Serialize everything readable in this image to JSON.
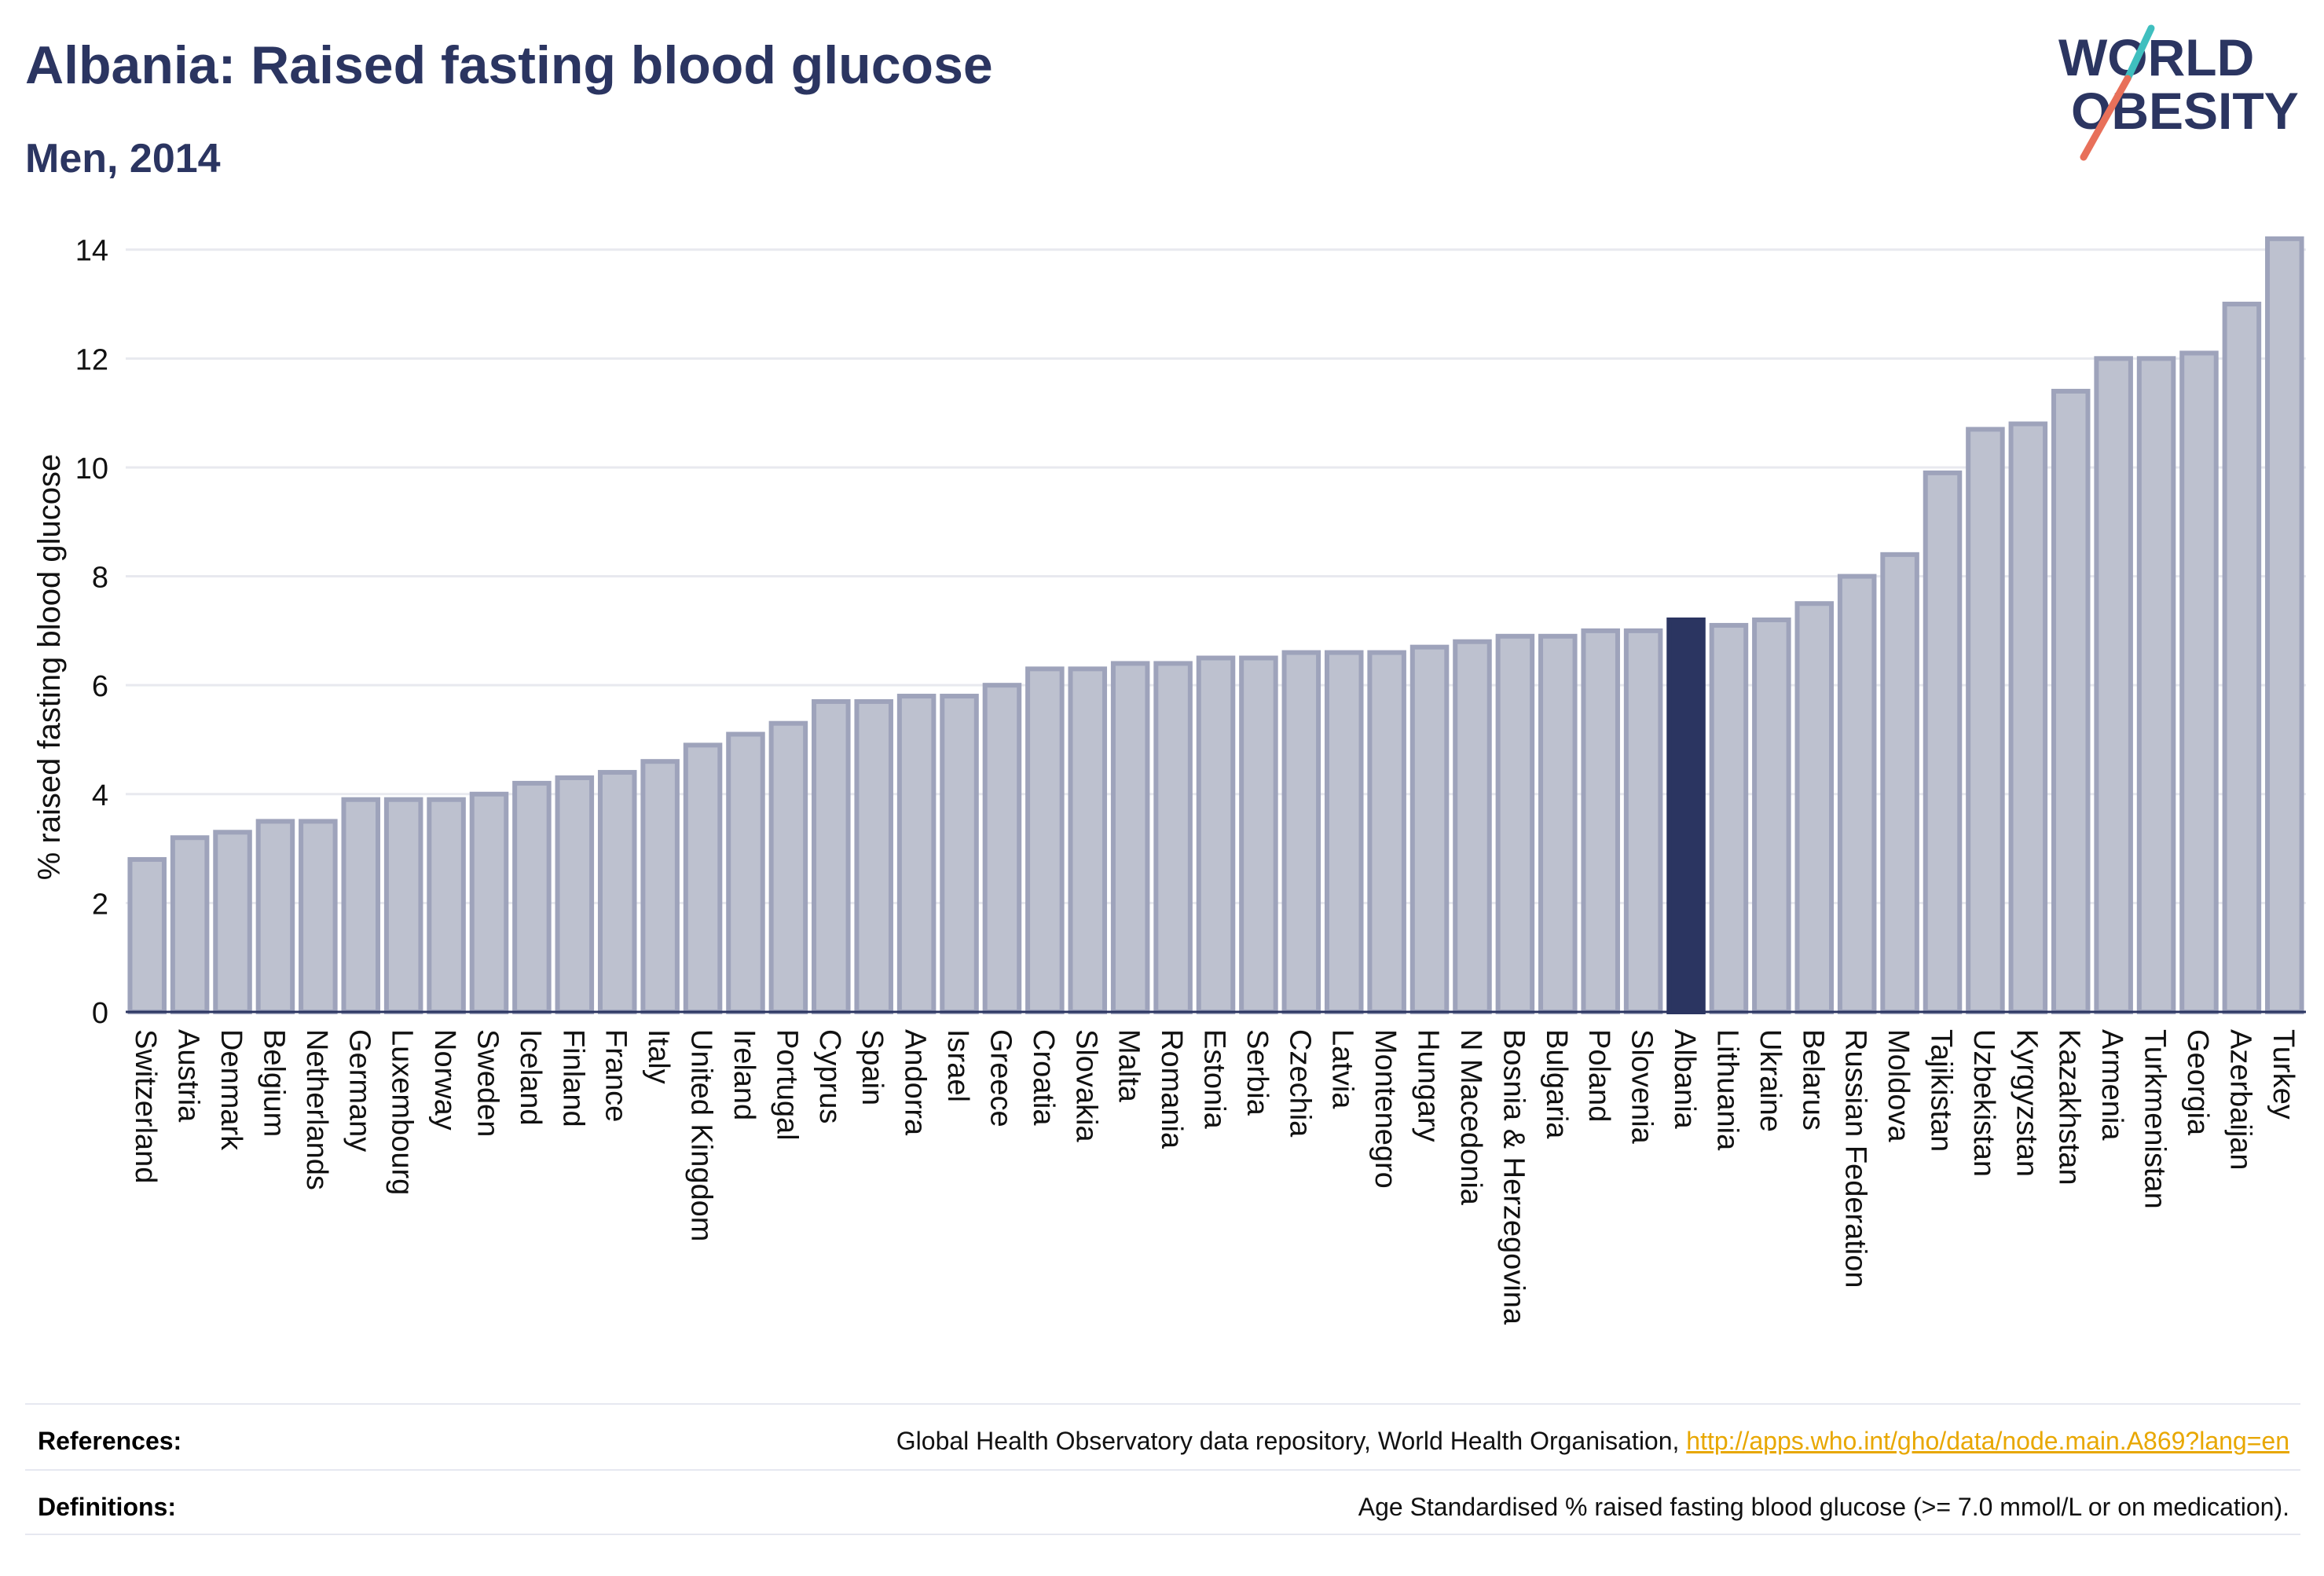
{
  "header": {
    "title": "Albania: Raised fasting blood glucose",
    "subtitle": "Men, 2014"
  },
  "logo": {
    "line1": "WORLD",
    "line2": "OBESITY"
  },
  "colors": {
    "highlight": "#2b3561",
    "bar_fill": "#bdc1cf",
    "bar_stroke": "#9ea3bb",
    "grid": "#e8e9ef",
    "logo_teal": "#3fbfbf",
    "logo_coral": "#e8705a",
    "link": "#e8a700"
  },
  "chart_data": {
    "type": "bar",
    "ylabel": "% raised fasting blood glucose",
    "xlabel": "",
    "ylim": [
      0,
      14.4
    ],
    "yticks": [
      0,
      2,
      4,
      6,
      8,
      10,
      12,
      14
    ],
    "grid": true,
    "highlight": "Albania",
    "categories": [
      "Switzerland",
      "Austria",
      "Denmark",
      "Belgium",
      "Netherlands",
      "Germany",
      "Luxembourg",
      "Norway",
      "Sweden",
      "Iceland",
      "Finland",
      "France",
      "Italy",
      "United Kingdom",
      "Ireland",
      "Portugal",
      "Cyprus",
      "Spain",
      "Andorra",
      "Israel",
      "Greece",
      "Croatia",
      "Slovakia",
      "Malta",
      "Romania",
      "Estonia",
      "Serbia",
      "Czechia",
      "Latvia",
      "Montenegro",
      "Hungary",
      "N Macedonia",
      "Bosnia & Herzegovina",
      "Bulgaria",
      "Poland",
      "Slovenia",
      "Albania",
      "Lithuania",
      "Ukraine",
      "Belarus",
      "Russian Federation",
      "Moldova",
      "Tajikistan",
      "Uzbekistan",
      "Kyrgyzstan",
      "Kazakhstan",
      "Armenia",
      "Turkmenistan",
      "Georgia",
      "Azerbaijan",
      "Turkey"
    ],
    "values": [
      2.8,
      3.2,
      3.3,
      3.5,
      3.5,
      3.9,
      3.9,
      3.9,
      4.0,
      4.2,
      4.3,
      4.4,
      4.6,
      4.9,
      5.1,
      5.3,
      5.7,
      5.7,
      5.8,
      5.8,
      6.0,
      6.3,
      6.3,
      6.4,
      6.4,
      6.5,
      6.5,
      6.6,
      6.6,
      6.6,
      6.7,
      6.8,
      6.9,
      6.9,
      7.0,
      7.0,
      7.2,
      7.1,
      7.2,
      7.5,
      8.0,
      8.4,
      9.9,
      10.7,
      10.8,
      11.4,
      12.0,
      12.0,
      12.1,
      13.0,
      14.2
    ]
  },
  "footer": {
    "references_label": "References:",
    "references_text": "Global Health Observatory data repository, World Health Organisation, ",
    "references_link": "http://apps.who.int/gho/data/node.main.A869?lang=en",
    "definitions_label": "Definitions:",
    "definitions_text": "Age Standardised % raised fasting blood glucose (>= 7.0 mmol/L or on medication)."
  }
}
